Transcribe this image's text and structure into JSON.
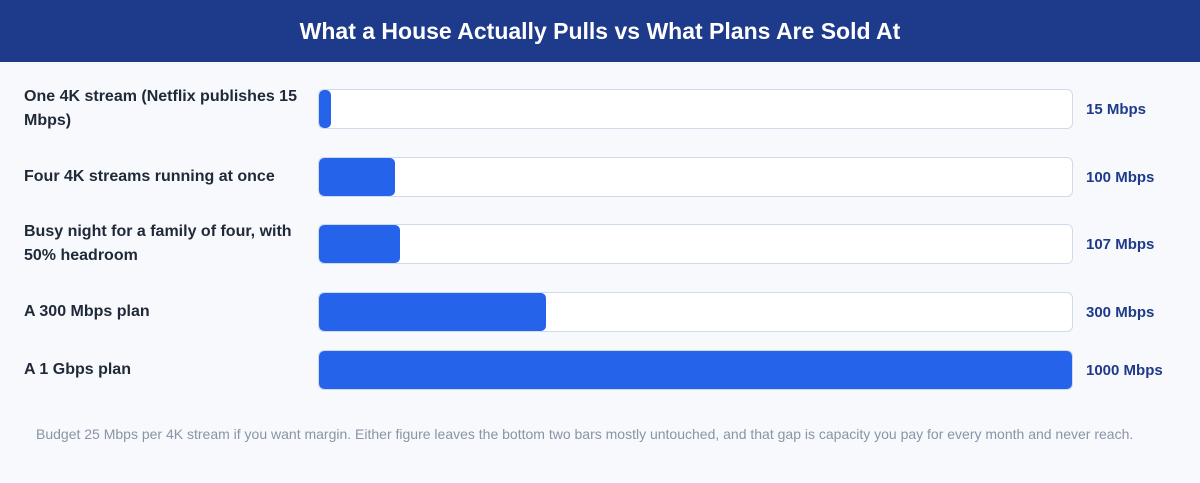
{
  "title": "What a House Actually Pulls vs What Plans Are Sold At",
  "chart_data": {
    "type": "bar",
    "orientation": "horizontal",
    "title": "What a House Actually Pulls vs What Plans Are Sold At",
    "xlim": [
      0,
      1000
    ],
    "unit": "Mbps",
    "categories": [
      "One 4K stream (Netflix publishes 15 Mbps)",
      "Four 4K streams running at once",
      "Busy night for a family of four, with 50% headroom",
      "A 300 Mbps plan",
      "A 1 Gbps plan"
    ],
    "values": [
      15,
      100,
      107,
      300,
      1000
    ],
    "value_labels": [
      "15 Mbps",
      "100 Mbps",
      "107 Mbps",
      "300 Mbps",
      "1000 Mbps"
    ],
    "bar_color": "#2563eb",
    "track_color": "#ffffff"
  },
  "footnote": "Budget 25 Mbps per 4K stream if you want margin. Either figure leaves the bottom two bars mostly untouched, and that gap is capacity you pay for every month and never reach."
}
